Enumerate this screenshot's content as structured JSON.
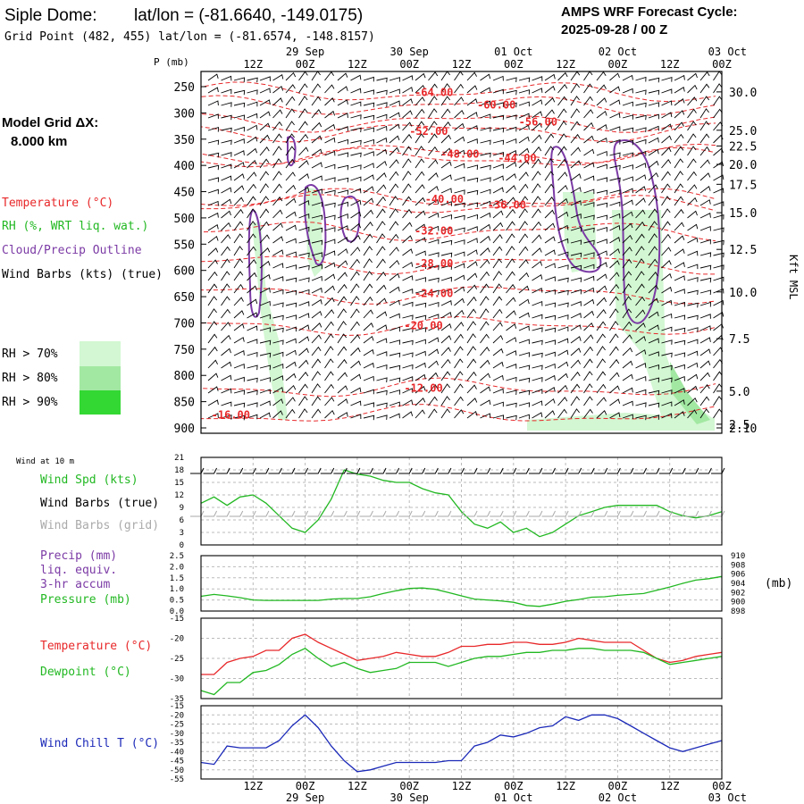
{
  "header": {
    "station": "Siple Dome:",
    "latlon": "lat/lon = (-81.6640, -149.0175)",
    "gridpoint": "Grid Point (482, 455) lat/lon = (-81.6574, -148.8157)",
    "cycle_label": "AMPS WRF Forecast Cycle:",
    "cycle_value": "2025-09-28 / 00  Z"
  },
  "sidebar": {
    "grid_label": "Model Grid ΔX:",
    "grid_value": "8.000 km",
    "legend": [
      {
        "text": "Temperature (°C)",
        "color": "#e8282a"
      },
      {
        "text": "RH (%, WRT liq. wat.)",
        "color": "#22b822"
      },
      {
        "text": "Cloud/Precip Outline",
        "color": "#7b3aa5"
      },
      {
        "text": "Wind Barbs (kts) (true)",
        "color": "#000000"
      }
    ],
    "rh_scale": [
      {
        "text": "RH > 70%",
        "color": "#d2f7d2"
      },
      {
        "text": "RH > 80%",
        "color": "#a2e8a2"
      },
      {
        "text": "RH > 90%",
        "color": "#33d833"
      }
    ]
  },
  "time_axis": {
    "hour_labels": [
      "12Z",
      "00Z",
      "12Z",
      "00Z",
      "12Z",
      "00Z",
      "12Z",
      "00Z",
      "12Z",
      "00Z"
    ],
    "hour_steps": [
      0.5,
      1,
      1.5,
      2,
      2.5,
      3,
      3.5,
      4,
      4.5,
      5
    ],
    "date_labels": [
      "29 Sep",
      "30 Sep",
      "01 Oct",
      "02 Oct",
      "03 Oct"
    ],
    "date_steps": [
      1,
      2,
      3,
      4,
      5
    ],
    "steps": [
      0,
      0.125,
      0.25,
      0.375,
      0.5,
      0.625,
      0.75,
      0.875,
      1,
      1.125,
      1.25,
      1.375,
      1.5,
      1.625,
      1.75,
      1.875,
      2,
      2.125,
      2.25,
      2.375,
      2.5,
      2.625,
      2.75,
      2.875,
      3,
      3.125,
      3.25,
      3.375,
      3.5,
      3.625,
      3.75,
      3.875,
      4,
      4.125,
      4.25,
      4.375,
      4.5,
      4.625,
      4.75,
      4.875,
      5
    ]
  },
  "chart_data": [
    {
      "type": "heatmap",
      "ylabel": "P (mb)",
      "y2label": "Kft MSL",
      "pressure_ticks": [
        250,
        300,
        350,
        400,
        450,
        500,
        550,
        600,
        650,
        700,
        750,
        800,
        850,
        900
      ],
      "height_ticks": [
        {
          "p": 260,
          "label": "30.0"
        },
        {
          "p": 333,
          "label": "25.0"
        },
        {
          "p": 363,
          "label": "22.5"
        },
        {
          "p": 398,
          "label": "20.0"
        },
        {
          "p": 436,
          "label": "17.5"
        },
        {
          "p": 490,
          "label": "15.0"
        },
        {
          "p": 560,
          "label": "12.5"
        },
        {
          "p": 641,
          "label": "10.0"
        },
        {
          "p": 730,
          "label": "7.5"
        },
        {
          "p": 830,
          "label": "5.0"
        },
        {
          "p": 893,
          "label": "2.5"
        },
        {
          "p": 900,
          "label": "2.10"
        }
      ],
      "temperature_labels": [
        {
          "t": 2.05,
          "p": 268,
          "label": "-64.00"
        },
        {
          "t": 2.65,
          "p": 292,
          "label": "-60.00"
        },
        {
          "t": 3.05,
          "p": 324,
          "label": "-56.00"
        },
        {
          "t": 2.0,
          "p": 342,
          "label": "-52.00"
        },
        {
          "t": 2.3,
          "p": 385,
          "label": "-48.00"
        },
        {
          "t": 2.85,
          "p": 393,
          "label": "-44.00"
        },
        {
          "t": 2.15,
          "p": 471,
          "label": "-40.00"
        },
        {
          "t": 2.75,
          "p": 482,
          "label": "-36.00"
        },
        {
          "t": 2.05,
          "p": 532,
          "label": "-32.00"
        },
        {
          "t": 2.05,
          "p": 594,
          "label": "-28.00"
        },
        {
          "t": 2.05,
          "p": 651,
          "label": "-24.00"
        },
        {
          "t": 1.95,
          "p": 712,
          "label": "-20.00"
        },
        {
          "t": 1.95,
          "p": 831,
          "label": "-12.00"
        },
        {
          "t": 0.1,
          "p": 882,
          "label": "-16.00"
        }
      ]
    },
    {
      "type": "line",
      "title": "Wind at 10 m",
      "legend": [
        {
          "text": "Wind Spd (kts)",
          "color": "#22b822"
        },
        {
          "text": "Wind Barbs (true)",
          "color": "#000000"
        },
        {
          "text": "Wind Barbs (grid)",
          "color": "#aaaaaa"
        }
      ],
      "ylim": [
        0,
        21
      ],
      "yticks": [
        0,
        3,
        6,
        9,
        12,
        15,
        18,
        21
      ],
      "series": [
        {
          "color": "#22b822",
          "values": [
            10,
            11.5,
            9.5,
            11.5,
            12,
            10,
            7,
            4,
            3,
            6,
            11,
            18,
            17,
            16.5,
            15.5,
            15,
            15,
            13.5,
            12.5,
            12,
            8,
            5,
            4,
            5.5,
            3,
            4,
            2,
            3,
            5,
            7,
            8,
            9,
            9.5,
            9.5,
            9.5,
            9.5,
            8,
            7,
            6.5,
            7,
            8
          ]
        }
      ]
    },
    {
      "type": "line",
      "legend": [
        {
          "text": "Precip (mm)",
          "color": "#7b3aa5"
        },
        {
          "text": "liq. equiv.",
          "color": "#7b3aa5"
        },
        {
          "text": "3-hr accum",
          "color": "#7b3aa5"
        },
        {
          "text": "Pressure (mb)",
          "color": "#22b822"
        }
      ],
      "ylim": [
        0,
        2.5
      ],
      "yticks": [
        0,
        0.5,
        1,
        1.5,
        2,
        2.5
      ],
      "ytick_labels": [
        "0.0",
        "0.5",
        "1.0",
        "1.5",
        "2.0",
        "2.5"
      ],
      "y2lim": [
        898,
        910
      ],
      "y2ticks": [
        898,
        900,
        902,
        904,
        906,
        908,
        910
      ],
      "y2label": "(mb)",
      "series": [
        {
          "color": "#22b822",
          "axis": "right",
          "values": [
            901.2,
            901.6,
            901.3,
            900.9,
            900.4,
            900.3,
            900.3,
            900.3,
            900.3,
            900.3,
            900.6,
            900.7,
            900.7,
            901.1,
            901.8,
            902.4,
            902.9,
            903,
            902.7,
            902.0,
            901.3,
            900.6,
            900.4,
            900.2,
            899.9,
            899.2,
            899.0,
            899.5,
            900.1,
            900.5,
            901.0,
            901.1,
            901.4,
            901.6,
            901.8,
            902.5,
            903.2,
            904.0,
            904.7,
            905.0,
            905.5
          ]
        }
      ]
    },
    {
      "type": "line",
      "legend": [
        {
          "text": "Temperature (°C)",
          "color": "#e8282a"
        },
        {
          "text": "Dewpoint (°C)",
          "color": "#22b822"
        }
      ],
      "ylim": [
        -35,
        -15
      ],
      "yticks": [
        -35,
        -30,
        -25,
        -20,
        -15
      ],
      "series": [
        {
          "color": "#e8282a",
          "values": [
            -29,
            -29,
            -26,
            -25,
            -24.5,
            -23,
            -23,
            -20,
            -19,
            -21,
            -22.5,
            -24,
            -25.5,
            -25,
            -24.5,
            -23.5,
            -24,
            -24.5,
            -24.5,
            -23.5,
            -22,
            -22,
            -21.5,
            -21.5,
            -21,
            -21,
            -21.5,
            -21.5,
            -21,
            -20,
            -20.5,
            -21,
            -21,
            -21,
            -23,
            -25,
            -26,
            -25.5,
            -24.5,
            -24,
            -23.5
          ]
        },
        {
          "color": "#22b822",
          "values": [
            -33,
            -34,
            -31,
            -31,
            -28.5,
            -28,
            -26.5,
            -24,
            -22.5,
            -25,
            -27,
            -26,
            -27.5,
            -28.5,
            -28,
            -27.5,
            -26,
            -26,
            -26,
            -27,
            -26,
            -25,
            -24.5,
            -24.5,
            -24,
            -23.5,
            -23.5,
            -23,
            -23,
            -22.5,
            -22.5,
            -23,
            -23,
            -23,
            -23.5,
            -25,
            -26.5,
            -26,
            -25.5,
            -25,
            -24.5
          ]
        }
      ]
    },
    {
      "type": "line",
      "legend": [
        {
          "text": "Wind Chill T (°C)",
          "color": "#1c2ab8"
        }
      ],
      "ylim": [
        -55,
        -15
      ],
      "yticks": [
        -55,
        -50,
        -45,
        -40,
        -35,
        -30,
        -25,
        -20,
        -15
      ],
      "series": [
        {
          "color": "#1c2ab8",
          "values": [
            -46,
            -47,
            -37,
            -38,
            -38,
            -38,
            -34,
            -26,
            -20,
            -27,
            -37,
            -45,
            -51,
            -50,
            -48,
            -46,
            -46,
            -46,
            -46,
            -45,
            -45,
            -37,
            -35,
            -31,
            -32,
            -30,
            -27,
            -26,
            -21,
            -23,
            -20,
            -20,
            -22,
            -26,
            -30,
            -34,
            -38,
            -40,
            -38,
            -36,
            -34
          ]
        }
      ]
    }
  ]
}
